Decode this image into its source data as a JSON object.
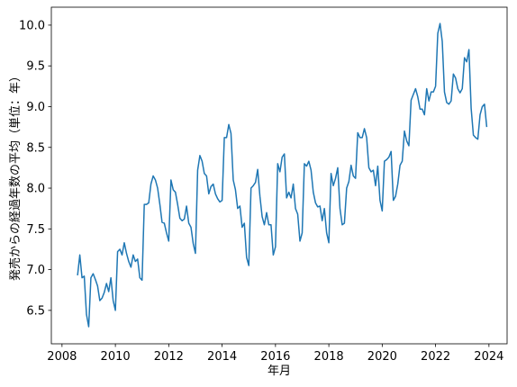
{
  "chart_data": {
    "type": "line",
    "xlabel": "年月",
    "ylabel": "発売からの経過年数の平均（単位：年）",
    "color": "#1f77b4",
    "x": [
      2008.583,
      2008.667,
      2008.75,
      2008.833,
      2008.917,
      2009,
      2009.083,
      2009.167,
      2009.25,
      2009.333,
      2009.417,
      2009.5,
      2009.583,
      2009.667,
      2009.75,
      2009.833,
      2009.917,
      2010,
      2010.083,
      2010.167,
      2010.25,
      2010.333,
      2010.417,
      2010.5,
      2010.583,
      2010.667,
      2010.75,
      2010.833,
      2010.917,
      2011,
      2011.083,
      2011.167,
      2011.25,
      2011.333,
      2011.417,
      2011.5,
      2011.583,
      2011.667,
      2011.75,
      2011.833,
      2011.917,
      2012,
      2012.083,
      2012.167,
      2012.25,
      2012.333,
      2012.417,
      2012.5,
      2012.583,
      2012.667,
      2012.75,
      2012.833,
      2012.917,
      2013,
      2013.083,
      2013.167,
      2013.25,
      2013.333,
      2013.417,
      2013.5,
      2013.583,
      2013.667,
      2013.75,
      2013.833,
      2013.917,
      2014,
      2014.083,
      2014.167,
      2014.25,
      2014.333,
      2014.417,
      2014.5,
      2014.583,
      2014.667,
      2014.75,
      2014.833,
      2014.917,
      2015,
      2015.083,
      2015.167,
      2015.25,
      2015.333,
      2015.417,
      2015.5,
      2015.583,
      2015.667,
      2015.75,
      2015.833,
      2015.917,
      2016,
      2016.083,
      2016.167,
      2016.25,
      2016.333,
      2016.417,
      2016.5,
      2016.583,
      2016.667,
      2016.75,
      2016.833,
      2016.917,
      2017,
      2017.083,
      2017.167,
      2017.25,
      2017.333,
      2017.417,
      2017.5,
      2017.583,
      2017.667,
      2017.75,
      2017.833,
      2017.917,
      2018,
      2018.083,
      2018.167,
      2018.25,
      2018.333,
      2018.417,
      2018.5,
      2018.583,
      2018.667,
      2018.75,
      2018.833,
      2018.917,
      2019,
      2019.083,
      2019.167,
      2019.25,
      2019.333,
      2019.417,
      2019.5,
      2019.583,
      2019.667,
      2019.75,
      2019.833,
      2019.917,
      2020,
      2020.083,
      2020.167,
      2020.25,
      2020.333,
      2020.417,
      2020.5,
      2020.583,
      2020.667,
      2020.75,
      2020.833,
      2020.917,
      2021,
      2021.083,
      2021.167,
      2021.25,
      2021.333,
      2021.417,
      2021.5,
      2021.583,
      2021.667,
      2021.75,
      2021.833,
      2021.917,
      2022,
      2022.083,
      2022.167,
      2022.25,
      2022.333,
      2022.417,
      2022.5,
      2022.583,
      2022.667,
      2022.75,
      2022.833,
      2022.917,
      2023,
      2023.083,
      2023.167,
      2023.25,
      2023.333,
      2023.417,
      2023.5,
      2023.583,
      2023.667,
      2023.75,
      2023.833,
      2023.917
    ],
    "values": [
      6.93,
      7.18,
      6.9,
      6.92,
      6.45,
      6.3,
      6.9,
      6.95,
      6.88,
      6.8,
      6.62,
      6.65,
      6.72,
      6.83,
      6.73,
      6.9,
      6.62,
      6.5,
      7.22,
      7.25,
      7.18,
      7.33,
      7.2,
      7.1,
      7.03,
      7.18,
      7.1,
      7.13,
      6.9,
      6.87,
      7.8,
      7.8,
      7.82,
      8.05,
      8.15,
      8.1,
      8.0,
      7.8,
      7.58,
      7.57,
      7.45,
      7.35,
      8.1,
      7.98,
      7.95,
      7.8,
      7.63,
      7.6,
      7.62,
      7.78,
      7.57,
      7.52,
      7.32,
      7.2,
      8.22,
      8.4,
      8.33,
      8.18,
      8.15,
      7.93,
      8.02,
      8.05,
      7.93,
      7.87,
      7.83,
      7.85,
      8.62,
      8.62,
      8.78,
      8.67,
      8.1,
      7.98,
      7.75,
      7.78,
      7.52,
      7.57,
      7.15,
      7.05,
      8.0,
      8.03,
      8.07,
      8.23,
      7.9,
      7.65,
      7.55,
      7.7,
      7.55,
      7.55,
      7.18,
      7.28,
      8.3,
      8.2,
      8.38,
      8.42,
      7.88,
      7.95,
      7.88,
      8.05,
      7.75,
      7.68,
      7.35,
      7.45,
      8.3,
      8.27,
      8.33,
      8.22,
      7.95,
      7.82,
      7.77,
      7.78,
      7.6,
      7.75,
      7.45,
      7.33,
      8.18,
      8.03,
      8.12,
      8.25,
      7.75,
      7.55,
      7.57,
      8.0,
      8.08,
      8.28,
      8.15,
      8.12,
      8.68,
      8.62,
      8.62,
      8.73,
      8.62,
      8.25,
      8.2,
      8.22,
      8.03,
      8.27,
      7.85,
      7.72,
      8.33,
      8.35,
      8.38,
      8.45,
      7.85,
      7.9,
      8.05,
      8.28,
      8.33,
      8.7,
      8.58,
      8.52,
      9.08,
      9.15,
      9.22,
      9.12,
      8.97,
      8.97,
      8.9,
      9.22,
      9.07,
      9.18,
      9.18,
      9.25,
      9.9,
      10.02,
      9.8,
      9.18,
      9.05,
      9.03,
      9.07,
      9.4,
      9.35,
      9.22,
      9.17,
      9.22,
      9.6,
      9.55,
      9.7,
      8.98,
      8.65,
      8.62,
      8.6,
      8.9,
      9.0,
      9.03,
      8.75
    ],
    "xlim": [
      2007.6,
      2024.68
    ],
    "xticks": [
      2008,
      2010,
      2012,
      2014,
      2016,
      2018,
      2020,
      2022,
      2024
    ],
    "ylim": [
      6.09,
      10.22
    ],
    "yticks": [
      6.5,
      {
        "value": 7,
        "label": "7.0"
      },
      7.5,
      {
        "value": 8,
        "label": "8.0"
      },
      8.5,
      {
        "value": 9,
        "label": "9.0"
      },
      9.5,
      {
        "value": 10,
        "label": "10.0"
      }
    ],
    "grid": false
  }
}
